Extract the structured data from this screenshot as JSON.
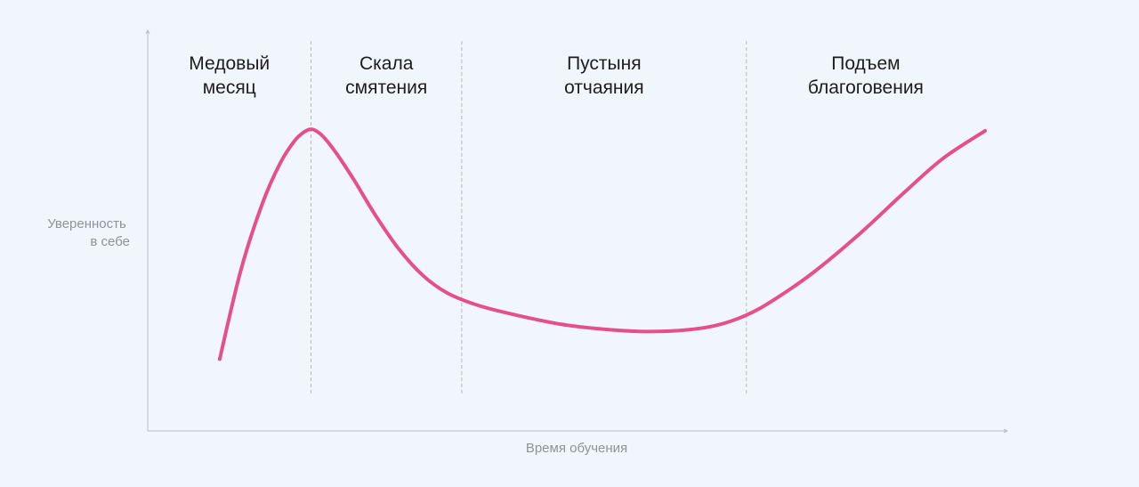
{
  "chart_data": {
    "type": "line",
    "title": "",
    "xlabel": "Время обучения",
    "ylabel_lines": [
      "Уверенность",
      "в себе"
    ],
    "xlim": [
      0,
      100
    ],
    "ylim": [
      0,
      100
    ],
    "grid": false,
    "ticks_shown": false,
    "phases": [
      {
        "lines": [
          "Медовый",
          "месяц"
        ],
        "start": 0,
        "end": 19.5
      },
      {
        "lines": [
          "Скала",
          "смятения"
        ],
        "start": 19.5,
        "end": 37.5
      },
      {
        "lines": [
          "Пустыня",
          "отчаяния"
        ],
        "start": 37.5,
        "end": 71.5
      },
      {
        "lines": [
          "Подъем",
          "благоговения"
        ],
        "start": 71.5,
        "end": 100
      }
    ],
    "series": [
      {
        "color": "#e5508a",
        "x": [
          8.6,
          11.1,
          13.7,
          15.8,
          17.5,
          18.6,
          19.5,
          20.3,
          21.2,
          22.7,
          24.6,
          27.3,
          30.0,
          32.8,
          35.8,
          39.6,
          44.0,
          49.5,
          54.0,
          58.6,
          63.0,
          67.5,
          71.5,
          75.0,
          79.5,
          85.0,
          90.5,
          95.0,
          100.0
        ],
        "y": [
          12.5,
          44.6,
          69.1,
          83.6,
          91.7,
          94.9,
          96.1,
          95.1,
          92.6,
          86.6,
          77.8,
          64.3,
          52.5,
          43.1,
          36.5,
          31.9,
          28.5,
          25.1,
          23.5,
          22.6,
          22.8,
          24.5,
          28.5,
          34.5,
          44.0,
          58.0,
          73.5,
          85.5,
          95.5
        ]
      }
    ]
  }
}
